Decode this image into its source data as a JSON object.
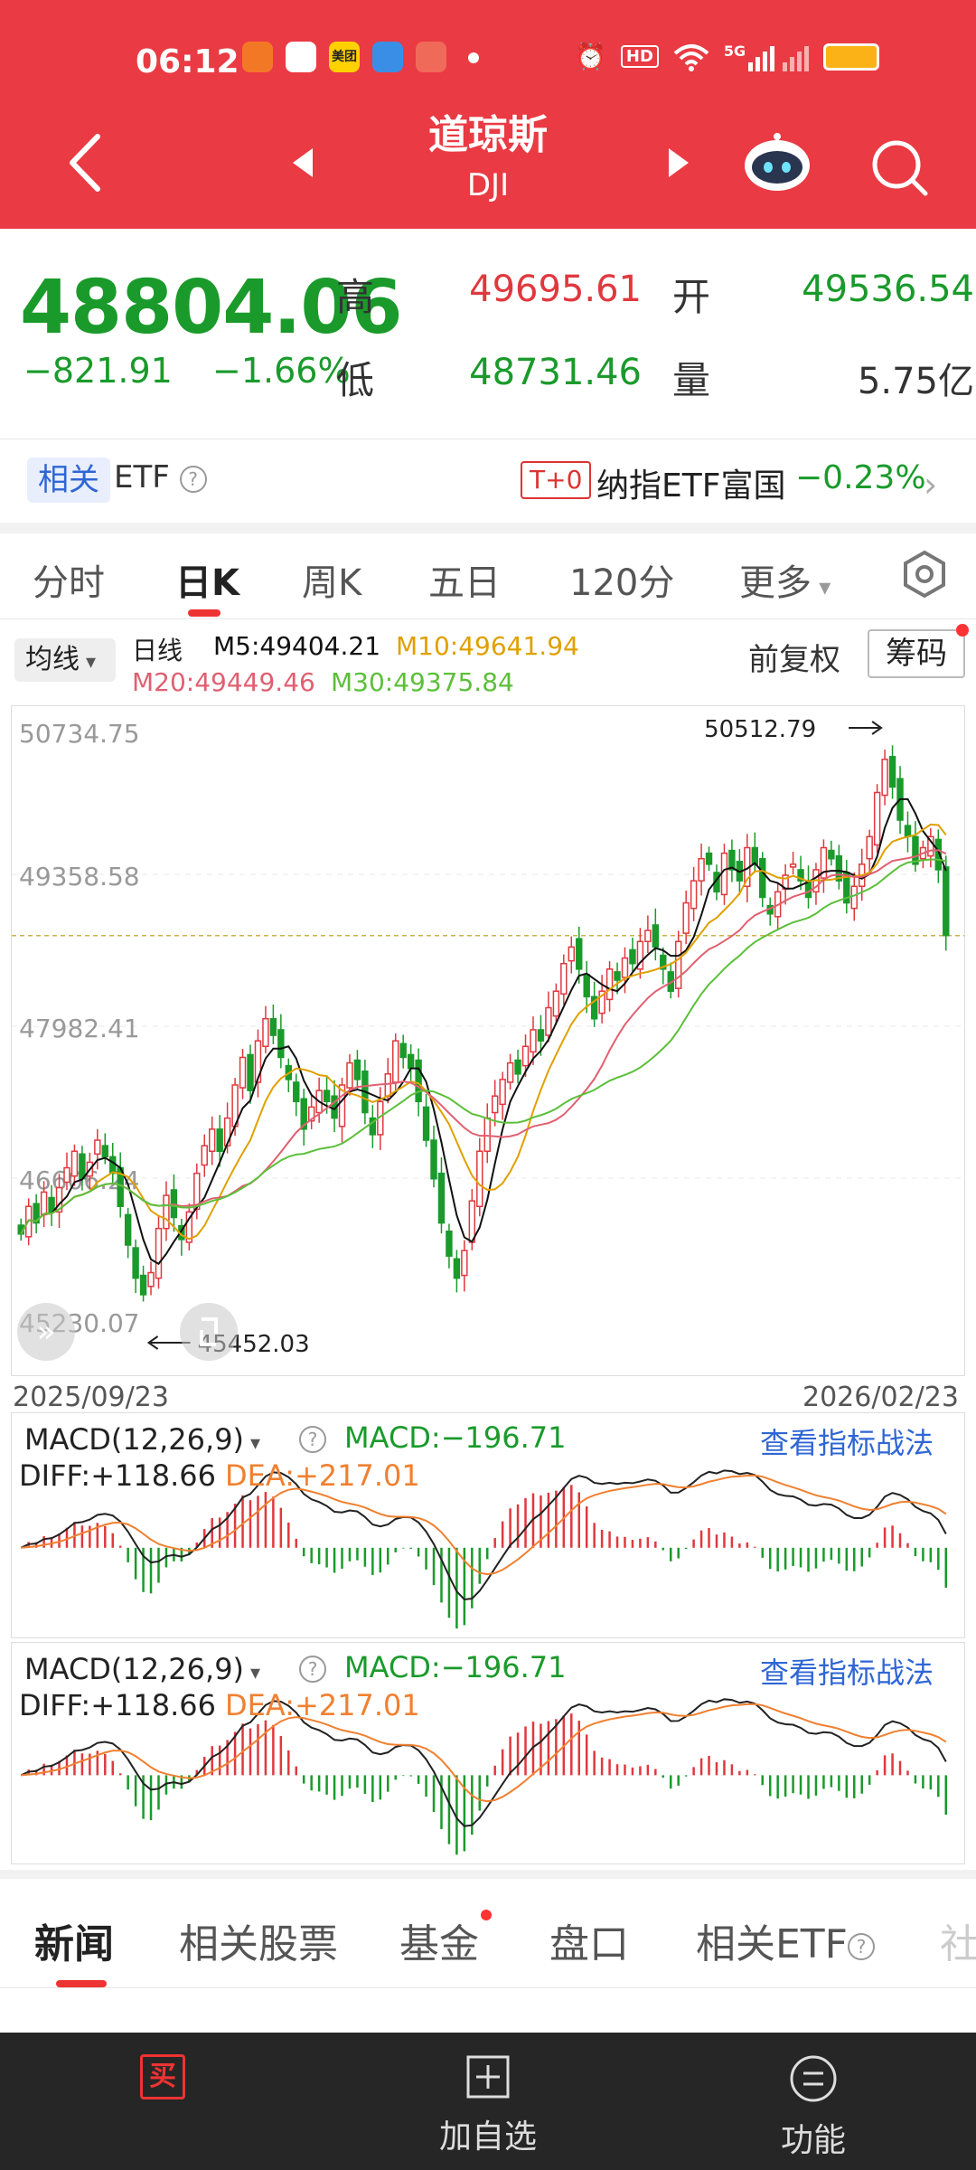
{
  "status_bar": {
    "time": "06:12",
    "icons": [
      "app-telegram-icon",
      "app-bank-icon",
      "app-meituan-icon",
      "app-cloud-icon",
      "app-video-icon",
      "alarm-icon",
      "hd-icon",
      "wifi-icon",
      "signal-5g-icon",
      "battery-icon"
    ],
    "hd_label": "HD",
    "net_label": "5G",
    "meituan_label": "美团"
  },
  "header": {
    "title": "道琼斯",
    "subtitle": "DJI"
  },
  "quote": {
    "price": "48804.06",
    "change": "−821.91",
    "change_pct": "−1.66%",
    "high_label": "高",
    "high": "49695.61",
    "open_label": "开",
    "open": "49536.54",
    "low_label": "低",
    "low": "48731.46",
    "vol_label": "量",
    "vol": "5.75亿",
    "colors": {
      "up": "#e0383e",
      "down": "#1a9a2b"
    }
  },
  "etf": {
    "tag": "相关",
    "label": "ETF",
    "help": "?",
    "t0": "T+0",
    "name": "纳指ETF富国",
    "change": "−0.23%"
  },
  "tabs": {
    "items": [
      "分时",
      "日K",
      "周K",
      "五日",
      "120分",
      "更多"
    ],
    "active": "日K"
  },
  "ma": {
    "selector": "均线",
    "period": "日线",
    "m5": "M5:49404.21",
    "m10": "M10:49641.94",
    "m20": "M20:49449.46",
    "m30": "M30:49375.84",
    "fuquan": "前复权",
    "chouma": "筹码",
    "colors": {
      "m5": "#111111",
      "m10": "#e0a000",
      "m20": "#e06070",
      "m30": "#5cbf3a"
    }
  },
  "chart_data": {
    "type": "candlestick",
    "y_ticks": [
      "50734.75",
      "49358.58",
      "47982.41",
      "46606.24",
      "45230.07"
    ],
    "ylim": [
      45230.07,
      50734.75
    ],
    "x_start": "2025/09/23",
    "x_end": "2026/02/23",
    "max_annotation": "50512.79",
    "min_annotation": "45452.03",
    "last_close": 48804.06,
    "closes": [
      46100,
      46350,
      46200,
      46480,
      46300,
      46520,
      46700,
      46850,
      46600,
      46750,
      46950,
      46800,
      46650,
      46350,
      46000,
      45700,
      45550,
      45750,
      46150,
      46450,
      46250,
      46050,
      46300,
      46650,
      46900,
      47050,
      46850,
      47150,
      47450,
      47700,
      47400,
      47850,
      48050,
      47900,
      47700,
      47500,
      47300,
      47050,
      47250,
      47400,
      47300,
      47150,
      47450,
      47650,
      47500,
      47200,
      47000,
      47300,
      47550,
      47850,
      47700,
      47600,
      47300,
      46950,
      46600,
      46200,
      45900,
      45700,
      45950,
      46400,
      46850,
      47150,
      47350,
      47500,
      47650,
      47550,
      47800,
      47950,
      47850,
      48150,
      48300,
      48550,
      48700,
      48500,
      48250,
      48050,
      48300,
      48500,
      48400,
      48600,
      48550,
      48750,
      48850,
      48700,
      48500,
      48300,
      48750,
      49100,
      49300,
      49500,
      49450,
      49200,
      49550,
      49400,
      49300,
      49600,
      49450,
      49150,
      49000,
      49200,
      49350,
      49450,
      49300,
      49150,
      49400,
      49600,
      49500,
      49300,
      49100,
      49250,
      49450,
      49700,
      50100,
      50400,
      50150,
      49850,
      49700,
      49450,
      49600,
      49700,
      49400,
      48804
    ],
    "macd": {
      "title": "MACD(12,26,9)",
      "help": "?",
      "value": "MACD:−196.71",
      "diff": "DIFF:+118.66",
      "dea": "DEA:+217.01",
      "link": "查看指标战法"
    }
  },
  "news_tabs": {
    "items": [
      "新闻",
      "相关股票",
      "基金",
      "盘口",
      "相关ETF",
      "社"
    ],
    "active": "新闻"
  },
  "bottom_bar": {
    "buy_icon_label": "买",
    "add_label": "加自选",
    "func_label": "功能"
  }
}
